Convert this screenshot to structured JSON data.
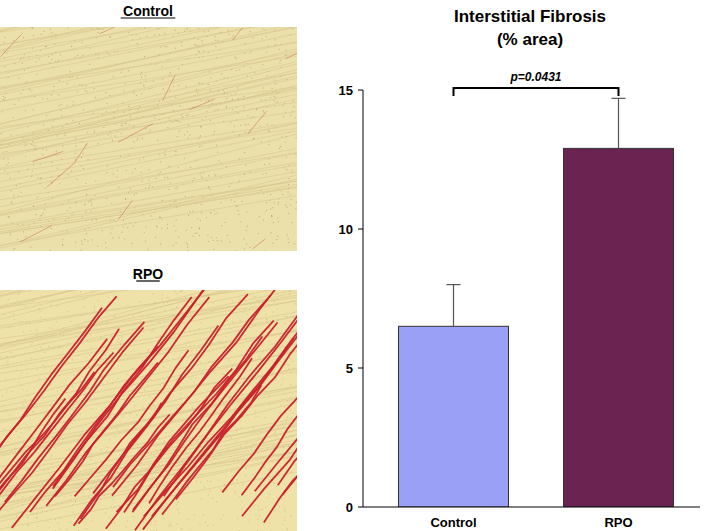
{
  "chart_data": {
    "type": "bar",
    "title": "Interstitial Fibrosis",
    "subtitle": "(% area)",
    "categories": [
      "Control",
      "RPO"
    ],
    "values": [
      6.5,
      12.9
    ],
    "errors": [
      1.5,
      1.8
    ],
    "colors": [
      "#99a0f5",
      "#6b2451"
    ],
    "ylim": [
      0,
      15
    ],
    "yticks": [
      0,
      5,
      10,
      15
    ],
    "grid": false,
    "annotation": "p=0.0431"
  },
  "images": {
    "labels": [
      "Control",
      "RPO"
    ]
  }
}
